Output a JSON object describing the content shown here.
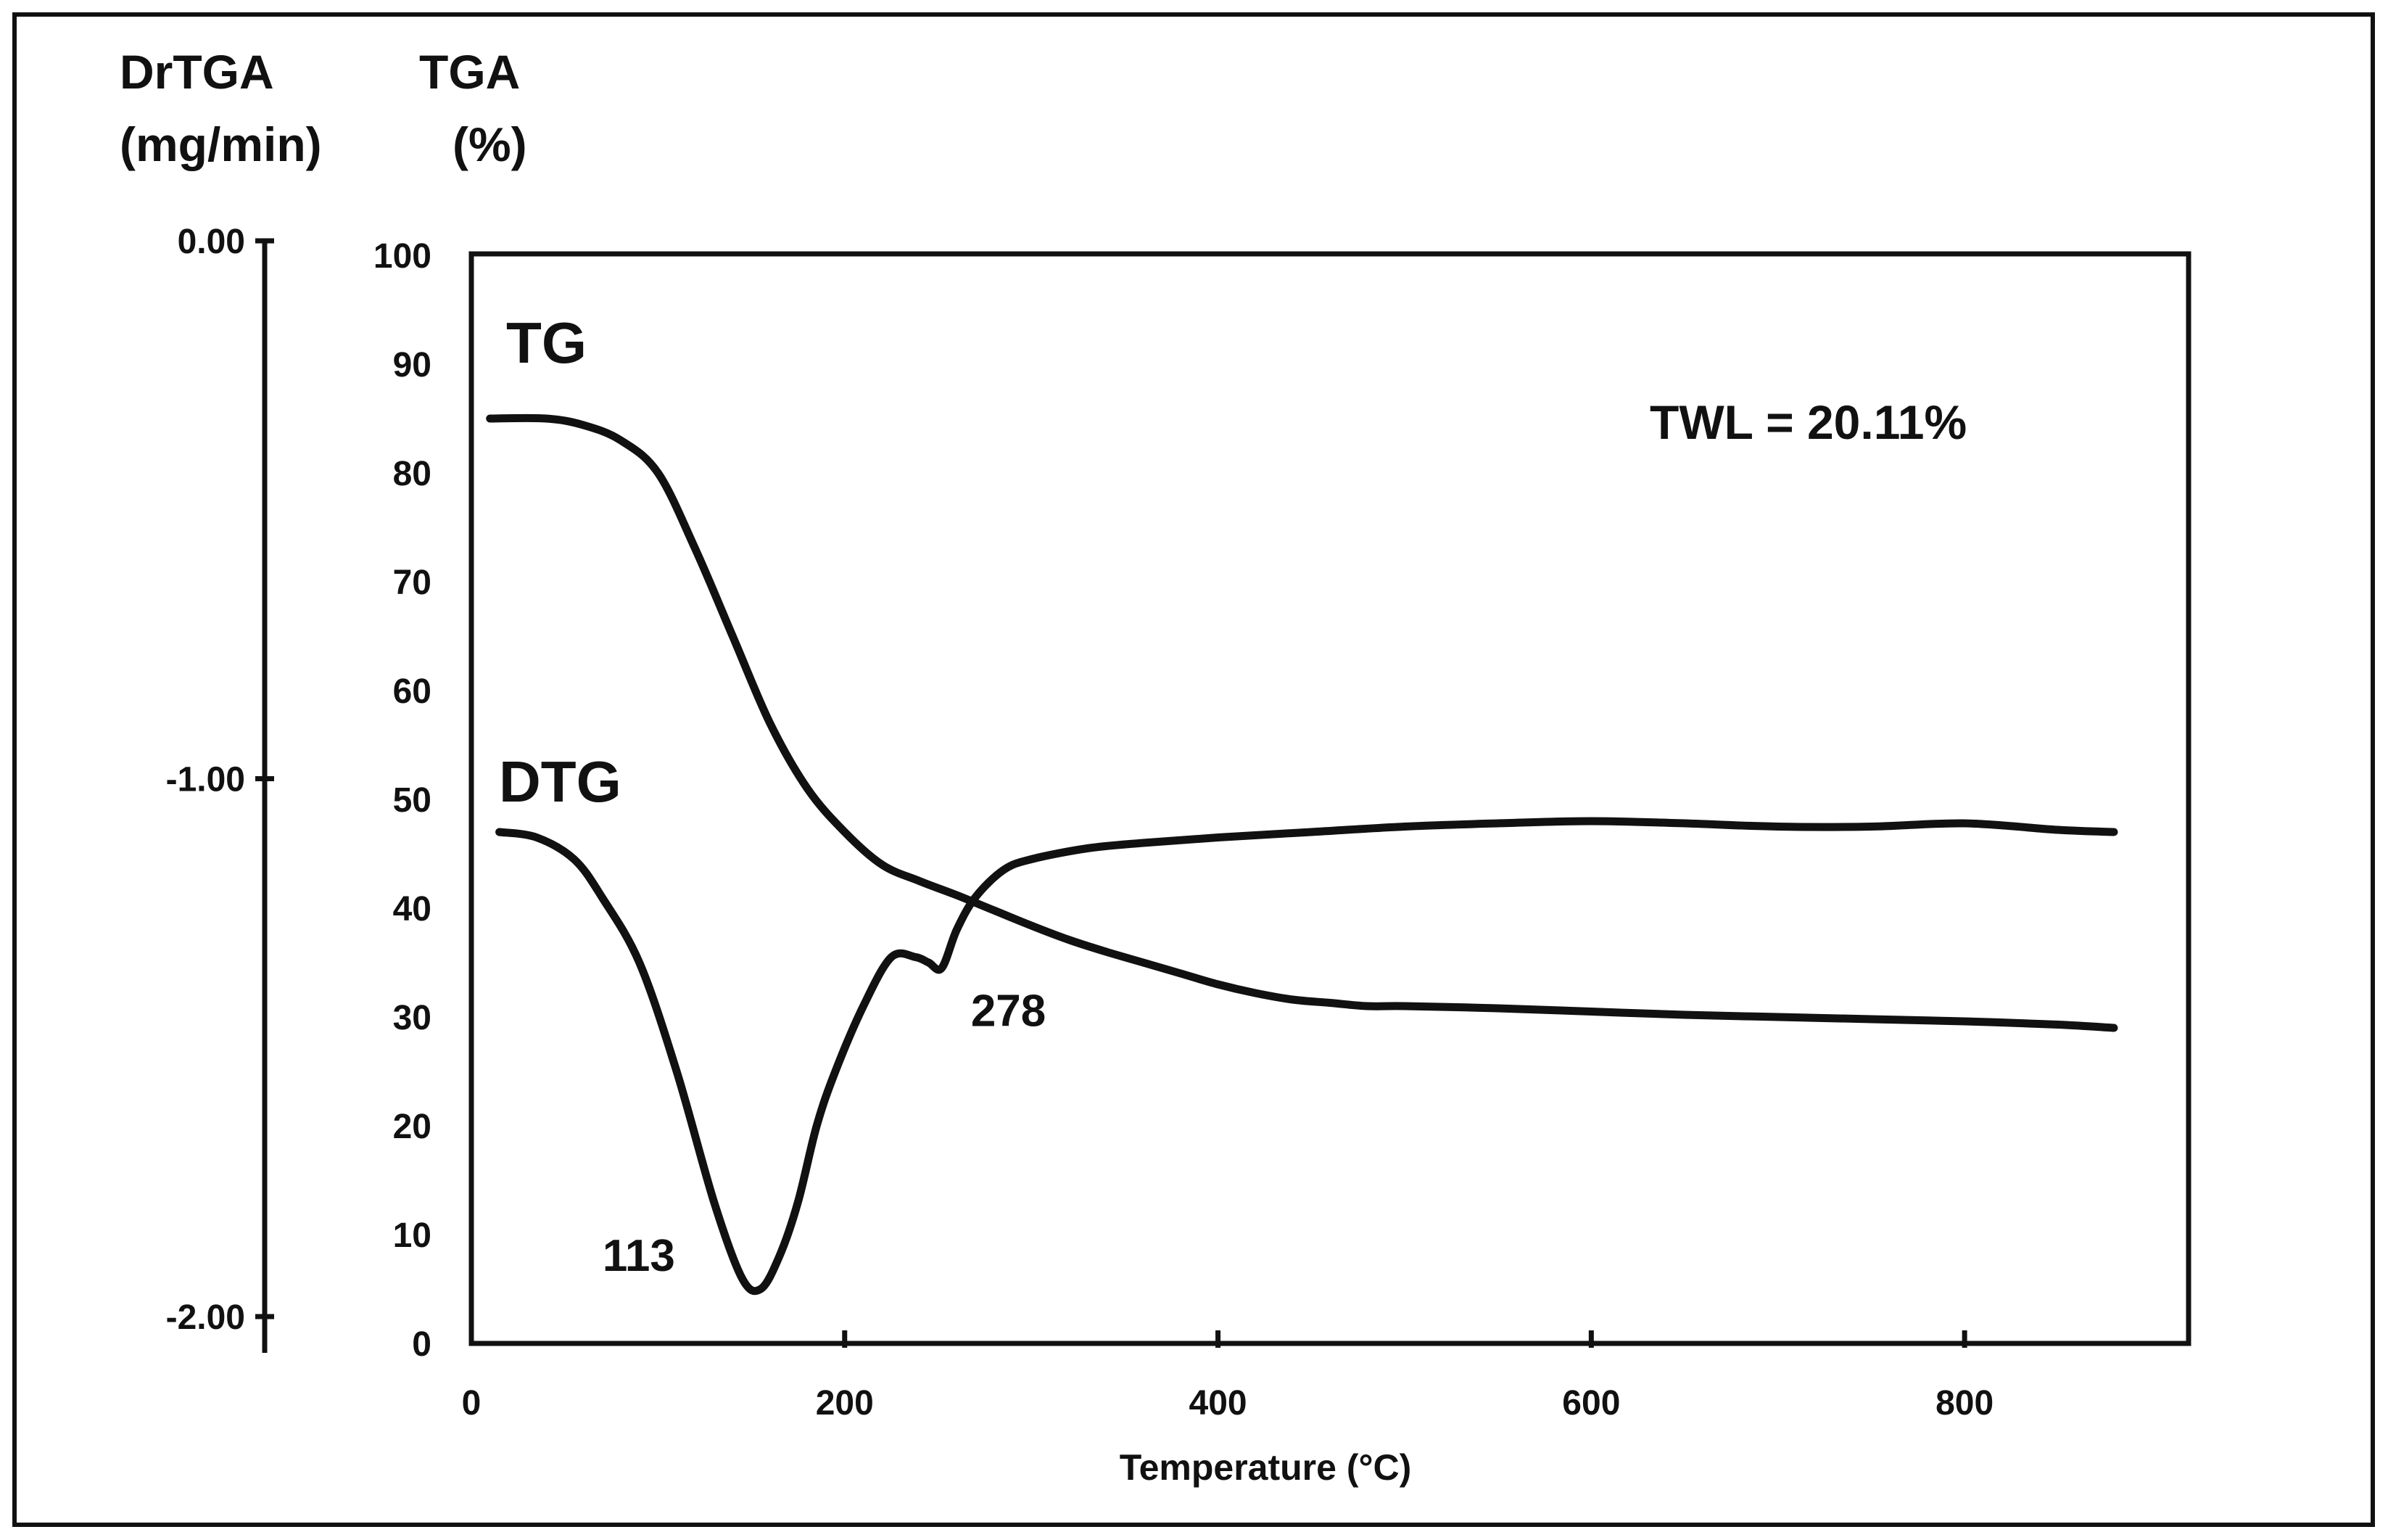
{
  "chart_data": {
    "type": "line",
    "xlabel": "Temperature (°C)",
    "x_ticks": [
      0,
      200,
      400,
      600,
      800
    ],
    "xlim": [
      0,
      920
    ],
    "tga_axis": {
      "title_line1": "TGA",
      "title_line2": "(%)",
      "ticks": [
        0,
        10,
        20,
        30,
        40,
        50,
        60,
        70,
        80,
        90,
        100
      ],
      "ylim": [
        0,
        100
      ]
    },
    "drtga_axis": {
      "title_line1": "DrTGA",
      "title_line2": "(mg/min)",
      "ticks": [
        "0.00",
        "-1.00",
        "-2.00"
      ],
      "ylim": [
        -2.0,
        0.0
      ]
    },
    "series": [
      {
        "name": "TG",
        "axis": "tga",
        "x": [
          10,
          40,
          60,
          80,
          100,
          120,
          140,
          160,
          180,
          200,
          220,
          240,
          260,
          280,
          300,
          320,
          340,
          360,
          380,
          400,
          420,
          440,
          460,
          480,
          500,
          550,
          600,
          650,
          700,
          750,
          800,
          850,
          880
        ],
        "y": [
          85,
          85,
          84.4,
          83,
          80,
          73,
          65,
          57,
          51,
          47,
          44,
          42.5,
          41.2,
          39.8,
          38.4,
          37.1,
          36,
          35,
          34,
          33,
          32.2,
          31.6,
          31.3,
          31,
          31,
          30.8,
          30.5,
          30.2,
          30,
          29.8,
          29.6,
          29.3,
          29
        ]
      },
      {
        "name": "DTG",
        "axis": "tga",
        "x": [
          15,
          35,
          55,
          70,
          90,
          110,
          130,
          145,
          155,
          165,
          175,
          185,
          195,
          210,
          225,
          238,
          245,
          252,
          260,
          270,
          285,
          300,
          330,
          360,
          400,
          450,
          500,
          550,
          600,
          650,
          700,
          750,
          800,
          850,
          880
        ],
        "y": [
          47,
          46.5,
          44.5,
          41,
          35,
          25,
          13,
          6,
          5,
          8,
          13,
          20,
          25,
          31,
          35.5,
          35.5,
          35,
          34.5,
          38,
          41,
          43.5,
          44.5,
          45.5,
          46,
          46.5,
          47,
          47.5,
          47.8,
          48,
          47.8,
          47.5,
          47.5,
          47.8,
          47.2,
          47
        ]
      }
    ],
    "curve_labels": [
      "TG",
      "DTG"
    ],
    "annotations": [
      {
        "text": "113",
        "x": 113,
        "y": 6
      },
      {
        "text": "278",
        "x": 278,
        "y": 30.5
      }
    ],
    "note": "TWL = 20.11%"
  }
}
